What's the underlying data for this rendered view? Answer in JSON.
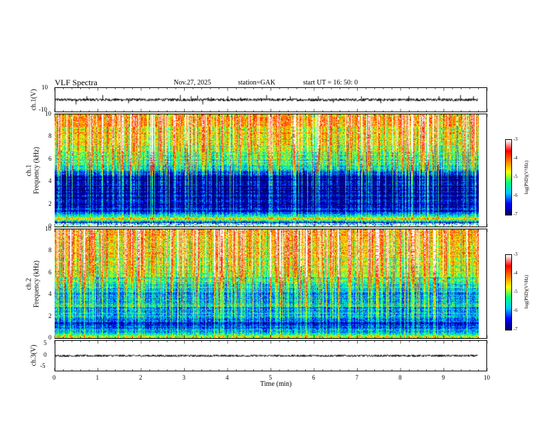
{
  "header": {
    "title": "VLF Spectra",
    "date": "Nov.27, 2025",
    "station": "station=GAK",
    "start": "start UT = 16: 50: 0"
  },
  "colors": {
    "trace": "#000000",
    "colormap": [
      "#000066",
      "#0000ff",
      "#00c8ff",
      "#00ff80",
      "#ffff00",
      "#ff8000",
      "#ff0000",
      "#ffffff"
    ]
  },
  "chart_data": [
    {
      "type": "line",
      "name": "ch1-waveform",
      "ylabel": "ch.1(V)",
      "ylim": [
        -10,
        10
      ],
      "yticks": [
        "10",
        "-10"
      ],
      "xlim": [
        0,
        10
      ],
      "trace_x_end": 9.8,
      "trace_level": 0,
      "trace_noise": 1.2,
      "spikes": [
        {
          "t": 0.48,
          "v": -4
        },
        {
          "t": 0.73,
          "v": 3
        },
        {
          "t": 1.1,
          "v": 4
        },
        {
          "t": 1.7,
          "v": -3
        },
        {
          "t": 2.9,
          "v": 4
        },
        {
          "t": 3.15,
          "v": 3
        },
        {
          "t": 3.3,
          "v": 3.5
        },
        {
          "t": 3.42,
          "v": -4
        },
        {
          "t": 3.55,
          "v": 2
        },
        {
          "t": 3.62,
          "v": 2
        },
        {
          "t": 4.0,
          "v": 3
        },
        {
          "t": 4.3,
          "v": 2
        },
        {
          "t": 4.9,
          "v": 4
        },
        {
          "t": 5.45,
          "v": 3
        },
        {
          "t": 6.1,
          "v": 3
        },
        {
          "t": 6.45,
          "v": -2.5
        },
        {
          "t": 7.1,
          "v": 3
        },
        {
          "t": 7.55,
          "v": -3
        },
        {
          "t": 8.2,
          "v": 3
        },
        {
          "t": 8.9,
          "v": 3
        },
        {
          "t": 9.4,
          "v": 4
        },
        {
          "t": 9.7,
          "v": 3
        }
      ]
    },
    {
      "type": "heatmap",
      "name": "ch1-spectrogram",
      "ylabel": "ch.1\nFrequency (kHz)",
      "ylabel_lines": [
        "ch.1",
        "Frequency (kHz)"
      ],
      "ylim": [
        0,
        10
      ],
      "yticks": [
        "0",
        "2",
        "4",
        "6",
        "8",
        "10"
      ],
      "xlim": [
        0,
        10
      ],
      "data_x_end": 9.8,
      "colorbar": {
        "label": "log(PSD)(V²/Hz)",
        "range": [
          -7,
          -3
        ],
        "ticks": [
          "-3",
          "-4",
          "-5",
          "-6",
          "-7"
        ]
      },
      "profile": [
        {
          "f": 0.0,
          "v": -5.0
        },
        {
          "f": 0.3,
          "v": -6.8
        },
        {
          "f": 0.6,
          "v": -4.5
        },
        {
          "f": 0.9,
          "v": -5.3
        },
        {
          "f": 1.1,
          "v": -6.3
        },
        {
          "f": 2.0,
          "v": -6.7
        },
        {
          "f": 3.0,
          "v": -6.9
        },
        {
          "f": 4.5,
          "v": -6.8
        },
        {
          "f": 5.0,
          "v": -6.0
        },
        {
          "f": 5.5,
          "v": -5.4
        },
        {
          "f": 6.5,
          "v": -4.9
        },
        {
          "f": 8.0,
          "v": -4.5
        },
        {
          "f": 10.0,
          "v": -4.2
        }
      ],
      "white_bands_khz": [
        0.0,
        0.3
      ]
    },
    {
      "type": "heatmap",
      "name": "ch2-spectrogram",
      "ylabel": "ch.2\nFrequency (kHz)",
      "ylabel_lines": [
        "ch.2",
        "Frequency (kHz)"
      ],
      "ylim": [
        0,
        10
      ],
      "yticks": [
        "0",
        "2",
        "4",
        "6",
        "8",
        "10"
      ],
      "xlim": [
        0,
        10
      ],
      "data_x_end": 9.8,
      "colorbar": {
        "label": "log(PSD)(V²/Hz)",
        "range": [
          -7,
          -3
        ],
        "ticks": [
          "-3",
          "-4",
          "-5",
          "-6",
          "-7"
        ]
      },
      "profile": [
        {
          "f": 0.0,
          "v": -5.0
        },
        {
          "f": 0.5,
          "v": -5.6
        },
        {
          "f": 1.0,
          "v": -6.4
        },
        {
          "f": 1.5,
          "v": -6.5
        },
        {
          "f": 2.0,
          "v": -5.8
        },
        {
          "f": 2.5,
          "v": -6.2
        },
        {
          "f": 3.0,
          "v": -5.6
        },
        {
          "f": 3.5,
          "v": -6.0
        },
        {
          "f": 4.0,
          "v": -5.9
        },
        {
          "f": 4.5,
          "v": -5.7
        },
        {
          "f": 5.0,
          "v": -5.4
        },
        {
          "f": 6.0,
          "v": -4.9
        },
        {
          "f": 8.0,
          "v": -4.5
        },
        {
          "f": 10.0,
          "v": -4.3
        }
      ]
    },
    {
      "type": "line",
      "name": "ch3-waveform",
      "ylabel": "ch.3(V)",
      "ylim": [
        -5,
        5
      ],
      "yticks": [
        "5",
        "0",
        "-5"
      ],
      "xlim": [
        0,
        10
      ],
      "trace_x_end": 9.8,
      "trace_level": 0,
      "trace_noise": 0.35
    }
  ],
  "xaxis": {
    "label": "Time (min)",
    "range": [
      0,
      10
    ],
    "ticks": [
      "0",
      "1",
      "2",
      "3",
      "4",
      "5",
      "6",
      "7",
      "8",
      "9",
      "10"
    ]
  }
}
